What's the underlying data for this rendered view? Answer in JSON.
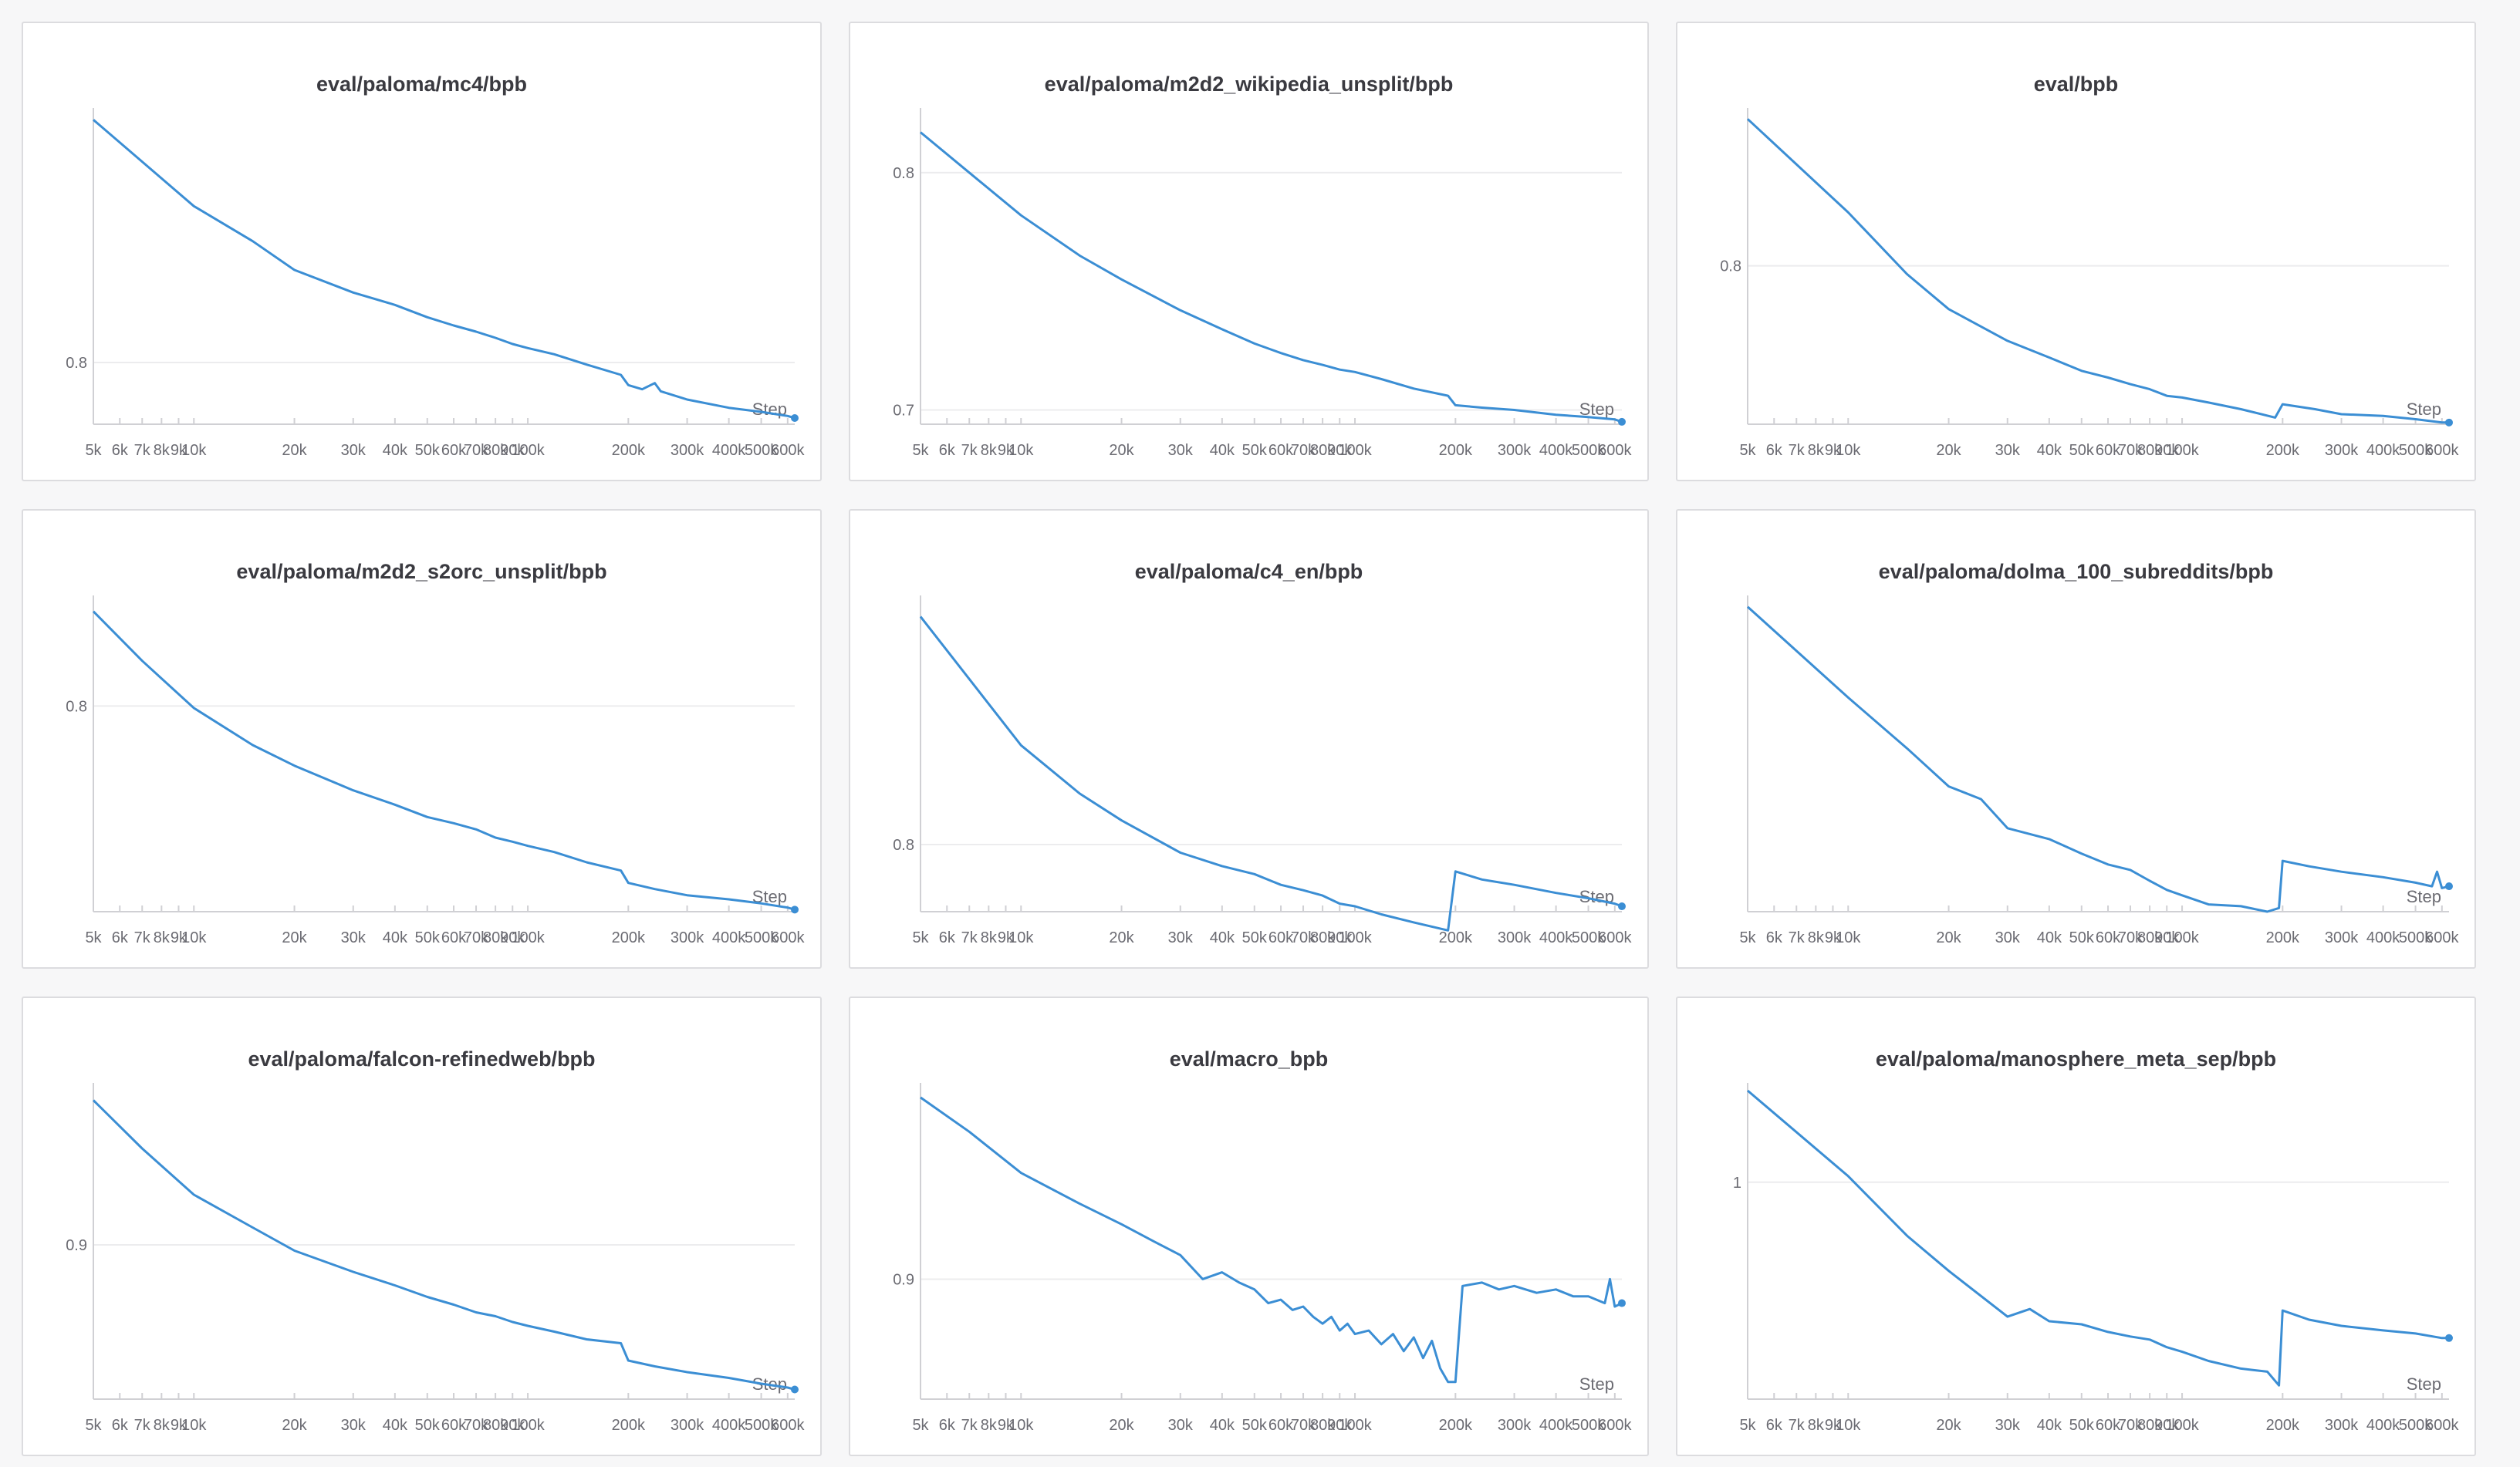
{
  "xaxis": {
    "label": "Step",
    "ticks": [
      {
        "v": 5000,
        "label": "5k"
      },
      {
        "v": 6000,
        "label": "6k"
      },
      {
        "v": 7000,
        "label": "7k"
      },
      {
        "v": 8000,
        "label": "8k"
      },
      {
        "v": 9000,
        "label": "9k"
      },
      {
        "v": 10000,
        "label": "10k"
      },
      {
        "v": 20000,
        "label": "20k"
      },
      {
        "v": 30000,
        "label": "30k"
      },
      {
        "v": 40000,
        "label": "40k"
      },
      {
        "v": 50000,
        "label": "50k"
      },
      {
        "v": 60000,
        "label": "60k"
      },
      {
        "v": 70000,
        "label": "70k"
      },
      {
        "v": 80000,
        "label": "80k"
      },
      {
        "v": 90000,
        "label": "90k"
      },
      {
        "v": 100000,
        "label": "100k"
      },
      {
        "v": 200000,
        "label": "200k"
      },
      {
        "v": 300000,
        "label": "300k"
      },
      {
        "v": 400000,
        "label": "400k"
      },
      {
        "v": 500000,
        "label": "500k"
      },
      {
        "v": 600000,
        "label": "600k"
      }
    ]
  },
  "colors": {
    "line": "#3b8ed4",
    "grid": "#ececee",
    "axis": "#d0d0d4"
  },
  "chart_data": [
    {
      "type": "line",
      "title": "eval/paloma/mc4/bpb",
      "xscale": "log",
      "xlim": [
        5000,
        630000
      ],
      "ylim": [
        0.77,
        0.92
      ],
      "yticks": [
        {
          "v": 0.8,
          "label": "0.8"
        }
      ],
      "x": [
        5000,
        10000,
        15000,
        20000,
        30000,
        40000,
        50000,
        60000,
        70000,
        80000,
        90000,
        100000,
        120000,
        150000,
        190000,
        200000,
        220000,
        240000,
        250000,
        300000,
        400000,
        500000,
        600000,
        630000
      ],
      "y": [
        0.918,
        0.876,
        0.859,
        0.845,
        0.834,
        0.828,
        0.822,
        0.818,
        0.815,
        0.812,
        0.809,
        0.807,
        0.804,
        0.799,
        0.794,
        0.789,
        0.787,
        0.79,
        0.786,
        0.782,
        0.778,
        0.776,
        0.774,
        0.773
      ]
    },
    {
      "type": "line",
      "title": "eval/paloma/m2d2_wikipedia_unsplit/bpb",
      "xscale": "log",
      "xlim": [
        5000,
        630000
      ],
      "ylim": [
        0.694,
        0.824
      ],
      "yticks": [
        {
          "v": 0.8,
          "label": "0.8"
        },
        {
          "v": 0.7,
          "label": "0.7"
        }
      ],
      "x": [
        5000,
        7000,
        10000,
        15000,
        20000,
        30000,
        40000,
        50000,
        60000,
        70000,
        80000,
        90000,
        100000,
        120000,
        150000,
        190000,
        200000,
        240000,
        300000,
        400000,
        500000,
        600000,
        630000
      ],
      "y": [
        0.817,
        0.8,
        0.782,
        0.765,
        0.755,
        0.742,
        0.734,
        0.728,
        0.724,
        0.721,
        0.719,
        0.717,
        0.716,
        0.713,
        0.709,
        0.706,
        0.702,
        0.701,
        0.7,
        0.698,
        0.697,
        0.696,
        0.695
      ]
    },
    {
      "type": "line",
      "title": "eval/bpb",
      "xscale": "log",
      "xlim": [
        5000,
        630000
      ],
      "ylim": [
        0.705,
        0.89
      ],
      "yticks": [
        {
          "v": 0.8,
          "label": "0.8"
        }
      ],
      "x": [
        5000,
        10000,
        15000,
        20000,
        30000,
        40000,
        50000,
        60000,
        70000,
        80000,
        90000,
        100000,
        120000,
        150000,
        190000,
        200000,
        250000,
        300000,
        400000,
        500000,
        600000,
        630000
      ],
      "y": [
        0.888,
        0.832,
        0.795,
        0.774,
        0.755,
        0.745,
        0.737,
        0.733,
        0.729,
        0.726,
        0.722,
        0.721,
        0.718,
        0.714,
        0.709,
        0.717,
        0.714,
        0.711,
        0.71,
        0.708,
        0.706,
        0.706
      ]
    },
    {
      "type": "line",
      "title": "eval/paloma/m2d2_s2orc_unsplit/bpb",
      "xscale": "log",
      "xlim": [
        5000,
        630000
      ],
      "ylim": [
        0.7,
        0.85
      ],
      "yticks": [
        {
          "v": 0.8,
          "label": "0.8"
        }
      ],
      "x": [
        5000,
        7000,
        10000,
        15000,
        20000,
        30000,
        40000,
        50000,
        60000,
        70000,
        80000,
        90000,
        100000,
        120000,
        150000,
        190000,
        200000,
        240000,
        300000,
        400000,
        500000,
        600000,
        630000
      ],
      "y": [
        0.846,
        0.822,
        0.799,
        0.781,
        0.771,
        0.759,
        0.752,
        0.746,
        0.743,
        0.74,
        0.736,
        0.734,
        0.732,
        0.729,
        0.724,
        0.72,
        0.714,
        0.711,
        0.708,
        0.706,
        0.704,
        0.702,
        0.701
      ]
    },
    {
      "type": "line",
      "title": "eval/paloma/c4_en/bpb",
      "xscale": "log",
      "xlim": [
        5000,
        630000
      ],
      "ylim": [
        0.775,
        0.89
      ],
      "yticks": [
        {
          "v": 0.8,
          "label": "0.8"
        }
      ],
      "x": [
        5000,
        10000,
        15000,
        20000,
        30000,
        40000,
        50000,
        60000,
        70000,
        80000,
        90000,
        100000,
        120000,
        150000,
        190000,
        200000,
        240000,
        300000,
        400000,
        500000,
        600000,
        630000
      ],
      "y": [
        0.885,
        0.837,
        0.819,
        0.809,
        0.797,
        0.792,
        0.789,
        0.785,
        0.783,
        0.781,
        0.778,
        0.777,
        0.774,
        0.771,
        0.768,
        0.79,
        0.787,
        0.785,
        0.782,
        0.78,
        0.778,
        0.777
      ]
    },
    {
      "type": "line",
      "title": "eval/paloma/dolma_100_subreddits/bpb",
      "xscale": "log",
      "xlim": [
        5000,
        630000
      ],
      "ylim": [
        0.75,
        0.92
      ],
      "yticks": [],
      "x": [
        5000,
        10000,
        15000,
        20000,
        25000,
        30000,
        40000,
        50000,
        60000,
        70000,
        80000,
        90000,
        100000,
        120000,
        150000,
        180000,
        195000,
        200000,
        240000,
        300000,
        400000,
        500000,
        560000,
        580000,
        600000,
        630000
      ],
      "y": [
        0.918,
        0.868,
        0.84,
        0.819,
        0.812,
        0.796,
        0.79,
        0.782,
        0.776,
        0.773,
        0.767,
        0.762,
        0.759,
        0.754,
        0.753,
        0.75,
        0.752,
        0.778,
        0.775,
        0.772,
        0.769,
        0.766,
        0.764,
        0.772,
        0.763,
        0.764
      ]
    },
    {
      "type": "line",
      "title": "eval/paloma/falcon-refinedweb/bpb",
      "xscale": "log",
      "xlim": [
        5000,
        630000
      ],
      "ylim": [
        0.82,
        0.98
      ],
      "yticks": [
        {
          "v": 0.9,
          "label": "0.9"
        }
      ],
      "x": [
        5000,
        7000,
        10000,
        15000,
        20000,
        30000,
        40000,
        50000,
        60000,
        70000,
        80000,
        90000,
        100000,
        120000,
        150000,
        190000,
        200000,
        240000,
        300000,
        400000,
        500000,
        600000,
        630000
      ],
      "y": [
        0.975,
        0.95,
        0.926,
        0.909,
        0.897,
        0.886,
        0.879,
        0.873,
        0.869,
        0.865,
        0.863,
        0.86,
        0.858,
        0.855,
        0.851,
        0.849,
        0.84,
        0.837,
        0.834,
        0.831,
        0.828,
        0.826,
        0.825
      ]
    },
    {
      "type": "line",
      "title": "eval/macro_bpb",
      "xscale": "log",
      "xlim": [
        5000,
        630000
      ],
      "ylim": [
        0.865,
        0.955
      ],
      "yticks": [
        {
          "v": 0.9,
          "label": "0.9"
        }
      ],
      "x": [
        5000,
        7000,
        10000,
        15000,
        20000,
        25000,
        30000,
        35000,
        40000,
        45000,
        50000,
        55000,
        60000,
        65000,
        70000,
        75000,
        80000,
        85000,
        90000,
        95000,
        100000,
        110000,
        120000,
        130000,
        140000,
        150000,
        160000,
        170000,
        180000,
        190000,
        200000,
        210000,
        240000,
        270000,
        300000,
        350000,
        400000,
        450000,
        500000,
        560000,
        580000,
        600000,
        630000
      ],
      "y": [
        0.953,
        0.943,
        0.931,
        0.922,
        0.916,
        0.911,
        0.907,
        0.9,
        0.902,
        0.899,
        0.897,
        0.893,
        0.894,
        0.891,
        0.892,
        0.889,
        0.887,
        0.889,
        0.885,
        0.887,
        0.884,
        0.885,
        0.881,
        0.884,
        0.879,
        0.883,
        0.877,
        0.882,
        0.874,
        0.87,
        0.87,
        0.898,
        0.899,
        0.897,
        0.898,
        0.896,
        0.897,
        0.895,
        0.895,
        0.893,
        0.9,
        0.892,
        0.893
      ]
    },
    {
      "type": "line",
      "title": "eval/paloma/manosphere_meta_sep/bpb",
      "xscale": "log",
      "xlim": [
        5000,
        630000
      ],
      "ylim": [
        0.858,
        1.06
      ],
      "yticks": [
        {
          "v": 1.0,
          "label": "1"
        }
      ],
      "x": [
        5000,
        10000,
        15000,
        20000,
        30000,
        35000,
        40000,
        50000,
        60000,
        70000,
        80000,
        90000,
        100000,
        120000,
        150000,
        180000,
        195000,
        200000,
        240000,
        300000,
        400000,
        500000,
        600000,
        630000
      ],
      "y": [
        1.06,
        1.004,
        0.965,
        0.942,
        0.912,
        0.917,
        0.909,
        0.907,
        0.902,
        0.899,
        0.897,
        0.892,
        0.889,
        0.883,
        0.878,
        0.876,
        0.867,
        0.916,
        0.91,
        0.906,
        0.903,
        0.901,
        0.898,
        0.898
      ]
    }
  ]
}
